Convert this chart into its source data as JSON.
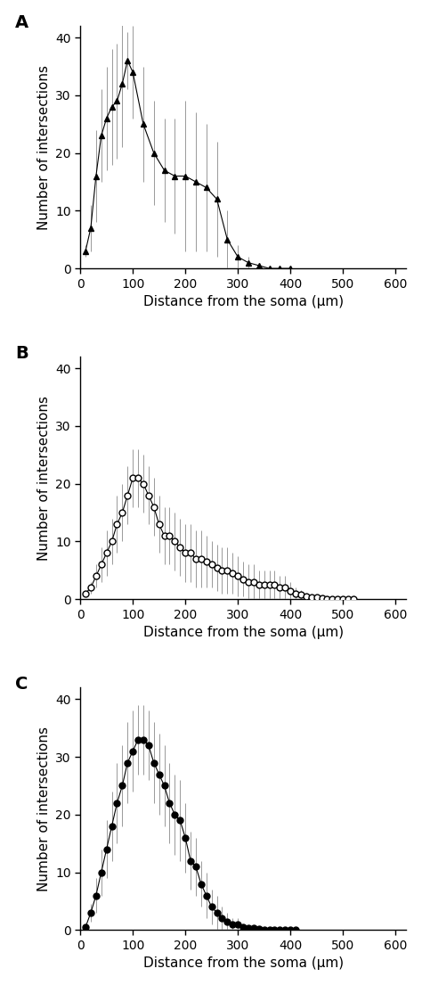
{
  "panel_A": {
    "label": "A",
    "x": [
      10,
      20,
      30,
      40,
      50,
      60,
      70,
      80,
      90,
      100,
      120,
      140,
      160,
      180,
      200,
      220,
      240,
      260,
      280,
      300,
      320,
      340,
      360,
      380,
      400
    ],
    "y": [
      3,
      7,
      16,
      23,
      26,
      28,
      29,
      32,
      36,
      34,
      25,
      20,
      17,
      16,
      16,
      15,
      14,
      12,
      5,
      2,
      1,
      0.5,
      0,
      0,
      0
    ],
    "yerr": [
      1,
      4,
      8,
      8,
      9,
      10,
      10,
      11,
      5,
      8,
      10,
      9,
      9,
      10,
      13,
      12,
      11,
      10,
      5,
      2,
      1,
      0.5,
      0,
      0,
      0
    ],
    "marker": "^",
    "fillstyle": "full",
    "xlim": [
      0,
      620
    ],
    "ylim": [
      0,
      42
    ],
    "xticks": [
      0,
      100,
      200,
      300,
      400,
      500,
      600
    ],
    "yticks": [
      0,
      10,
      20,
      30,
      40
    ]
  },
  "panel_B": {
    "label": "B",
    "x": [
      10,
      20,
      30,
      40,
      50,
      60,
      70,
      80,
      90,
      100,
      110,
      120,
      130,
      140,
      150,
      160,
      170,
      180,
      190,
      200,
      210,
      220,
      230,
      240,
      250,
      260,
      270,
      280,
      290,
      300,
      310,
      320,
      330,
      340,
      350,
      360,
      370,
      380,
      390,
      400,
      410,
      420,
      430,
      440,
      450,
      460,
      470,
      480,
      490,
      500,
      510,
      520
    ],
    "y": [
      1,
      2,
      4,
      6,
      8,
      10,
      13,
      15,
      18,
      21,
      21,
      20,
      18,
      16,
      13,
      11,
      11,
      10,
      9,
      8,
      8,
      7,
      7,
      6.5,
      6,
      5.5,
      5,
      5,
      4.5,
      4,
      3.5,
      3,
      3,
      2.5,
      2.5,
      2.5,
      2.5,
      2,
      2,
      1.5,
      1,
      0.8,
      0.5,
      0.4,
      0.3,
      0.2,
      0.1,
      0.1,
      0,
      0,
      0,
      0
    ],
    "yerr": [
      0.5,
      1,
      2,
      3,
      4,
      4,
      5,
      5,
      5,
      5,
      5,
      5,
      5,
      5,
      5,
      5,
      5,
      5,
      5,
      5,
      5,
      5,
      5,
      4.5,
      4,
      4,
      4,
      4,
      3.5,
      3.5,
      3,
      3,
      3,
      2.5,
      2.5,
      2.5,
      2.5,
      2,
      2,
      1.5,
      1,
      0.8,
      0.5,
      0.4,
      0.3,
      0.2,
      0.1,
      0.1,
      0,
      0,
      0,
      0
    ],
    "marker": "o",
    "fillstyle": "none",
    "xlim": [
      0,
      620
    ],
    "ylim": [
      0,
      42
    ],
    "xticks": [
      0,
      100,
      200,
      300,
      400,
      500,
      600
    ],
    "yticks": [
      0,
      10,
      20,
      30,
      40
    ]
  },
  "panel_C": {
    "label": "C",
    "x": [
      10,
      20,
      30,
      40,
      50,
      60,
      70,
      80,
      90,
      100,
      110,
      120,
      130,
      140,
      150,
      160,
      170,
      180,
      190,
      200,
      210,
      220,
      230,
      240,
      250,
      260,
      270,
      280,
      290,
      300,
      310,
      320,
      330,
      340,
      350,
      360,
      370,
      380,
      390,
      400,
      410
    ],
    "y": [
      0.5,
      3,
      6,
      10,
      14,
      18,
      22,
      25,
      29,
      31,
      33,
      33,
      32,
      29,
      27,
      25,
      22,
      20,
      19,
      16,
      12,
      11,
      8,
      6,
      4,
      3,
      2,
      1.5,
      1,
      1,
      0.5,
      0.3,
      0.3,
      0.2,
      0.1,
      0,
      0,
      0,
      0,
      0,
      0
    ],
    "yerr": [
      0.3,
      1.5,
      3,
      4,
      5,
      6,
      7,
      7,
      7,
      7,
      6,
      6,
      6,
      7,
      7,
      7,
      7,
      7,
      7,
      6,
      5,
      5,
      4,
      4,
      3,
      3,
      2,
      1.5,
      1,
      1,
      0.5,
      0.3,
      0.3,
      0.2,
      0.1,
      0,
      0,
      0,
      0,
      0,
      0
    ],
    "marker": "o",
    "fillstyle": "full",
    "xlim": [
      0,
      620
    ],
    "ylim": [
      0,
      42
    ],
    "xticks": [
      0,
      100,
      200,
      300,
      400,
      500,
      600
    ],
    "yticks": [
      0,
      10,
      20,
      30,
      40
    ]
  },
  "ylabel": "Number of intersections",
  "xlabel": "Distance from the soma (μm)",
  "line_color": "black",
  "error_color": "#999999",
  "background_color": "white",
  "markersize": 5,
  "linewidth": 0.8,
  "capsize": 0,
  "elinewidth": 0.7
}
